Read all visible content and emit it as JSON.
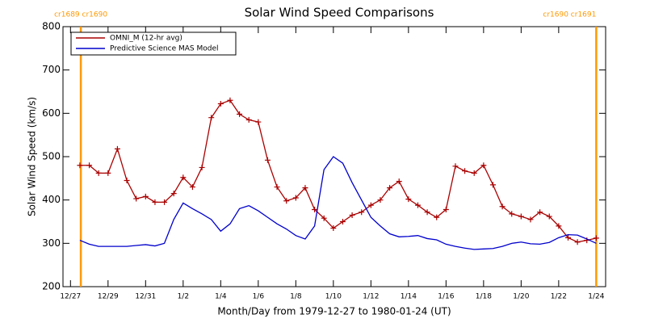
{
  "chart_data": {
    "type": "line",
    "title": "Solar Wind Speed Comparisons",
    "xlabel": "Month/Day from 1979-12-27 to 1980-01-24 (UT)",
    "ylabel": "Solar Wind Speed (km/s)",
    "xlim": [
      -0.4,
      28.5
    ],
    "ylim": [
      200,
      800
    ],
    "xticks": [
      {
        "value": 0,
        "label": "12/27"
      },
      {
        "value": 2,
        "label": "12/29"
      },
      {
        "value": 4,
        "label": "12/31"
      },
      {
        "value": 6,
        "label": "1/2"
      },
      {
        "value": 8,
        "label": "1/4"
      },
      {
        "value": 10,
        "label": "1/6"
      },
      {
        "value": 12,
        "label": "1/8"
      },
      {
        "value": 14,
        "label": "1/10"
      },
      {
        "value": 16,
        "label": "1/12"
      },
      {
        "value": 18,
        "label": "1/14"
      },
      {
        "value": 20,
        "label": "1/16"
      },
      {
        "value": 22,
        "label": "1/18"
      },
      {
        "value": 24,
        "label": "1/20"
      },
      {
        "value": 26,
        "label": "1/22"
      },
      {
        "value": 28,
        "label": "1/24"
      }
    ],
    "yticks": [
      200,
      300,
      400,
      500,
      600,
      700,
      800
    ],
    "legend": "upper-left",
    "vlines": [
      {
        "x": 0.55,
        "label": "cr1689 cr1690",
        "color": "#ff9900"
      },
      {
        "x": 28.0,
        "label": "cr1690 cr1691",
        "color": "#ff9900"
      }
    ],
    "series": [
      {
        "name": "OMNI_M (12-hr avg)",
        "color": "#aa0000",
        "markers": true,
        "x": [
          0.5,
          1,
          1.5,
          2,
          2.5,
          3,
          3.5,
          4,
          4.5,
          5,
          5.5,
          6,
          6.5,
          7,
          7.5,
          8,
          8.5,
          9,
          9.5,
          10,
          10.5,
          11,
          11.5,
          12,
          12.5,
          13,
          13.5,
          14,
          14.5,
          15,
          15.5,
          16,
          16.5,
          17,
          17.5,
          18,
          18.5,
          19,
          19.5,
          20,
          20.5,
          21,
          21.5,
          22,
          22.5,
          23,
          23.5,
          24,
          24.5,
          25,
          25.5,
          26,
          26.5,
          27,
          27.5,
          28
        ],
        "values": [
          480,
          480,
          462,
          462,
          518,
          445,
          403,
          408,
          395,
          395,
          415,
          452,
          430,
          475,
          590,
          622,
          630,
          598,
          585,
          580,
          492,
          430,
          398,
          405,
          428,
          378,
          358,
          335,
          350,
          365,
          372,
          388,
          400,
          428,
          443,
          402,
          388,
          372,
          360,
          378,
          478,
          467,
          462,
          480,
          435,
          385,
          368,
          362,
          355,
          372,
          362,
          340,
          313,
          303,
          307,
          312
        ]
      },
      {
        "name": "Predictive Science MAS Model",
        "color": "#0000cc",
        "markers": false,
        "x": [
          0.5,
          1,
          1.5,
          2,
          2.5,
          3,
          3.5,
          4,
          4.5,
          5,
          5.5,
          6,
          6.5,
          7,
          7.5,
          8,
          8.5,
          9,
          9.5,
          10,
          10.5,
          11,
          11.5,
          12,
          12.5,
          13,
          13.5,
          14,
          14.5,
          15,
          15.5,
          16,
          16.5,
          17,
          17.5,
          18,
          18.5,
          19,
          19.5,
          20,
          20.5,
          21,
          21.5,
          22,
          22.5,
          23,
          23.5,
          24,
          24.5,
          25,
          25.5,
          26,
          26.5,
          27,
          27.5,
          28
        ],
        "values": [
          307,
          298,
          293,
          293,
          293,
          293,
          295,
          297,
          294,
          300,
          355,
          393,
          380,
          368,
          355,
          328,
          345,
          380,
          387,
          375,
          360,
          345,
          333,
          318,
          310,
          340,
          470,
          500,
          485,
          440,
          400,
          360,
          340,
          322,
          315,
          316,
          318,
          311,
          308,
          298,
          293,
          289,
          286,
          287,
          288,
          293,
          300,
          303,
          299,
          298,
          302,
          313,
          320,
          319,
          310,
          300
        ]
      }
    ]
  }
}
